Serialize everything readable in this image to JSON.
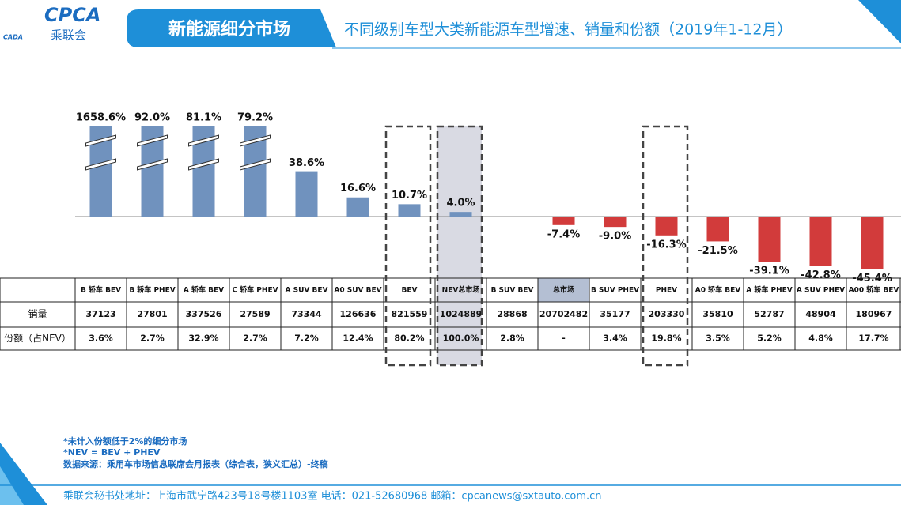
{
  "header": {
    "logo": "CPCA",
    "logo_sub": "乘联会",
    "logo_small": "CADA",
    "section": "新能源细分市场",
    "title": "不同级别车型大类新能源车型增速、销量和份额（2019年1-12月）"
  },
  "chart_data": {
    "type": "bar",
    "categories": [
      "B 轿车 BEV",
      "B 轿车 PHEV",
      "A 轿车 BEV",
      "C 轿车 PHEV",
      "A SUV BEV",
      "A0 SUV BEV",
      "BEV",
      "NEV总市场",
      "B SUV BEV",
      "总市场",
      "B SUV PHEV",
      "PHEV",
      "A0 轿车 BEV",
      "A 轿车 PHEV",
      "A SUV PHEV",
      "A00 轿车 BEV"
    ],
    "values": [
      1658.6,
      92.0,
      81.1,
      79.2,
      38.6,
      16.6,
      10.7,
      4.0,
      null,
      -7.4,
      -9.0,
      -16.3,
      -21.5,
      -39.1,
      -42.8,
      -45.4
    ],
    "value_labels": [
      "1658.6%",
      "92.0%",
      "81.1%",
      "79.2%",
      "38.6%",
      "16.6%",
      "10.7%",
      "4.0%",
      null,
      "-7.4%",
      "-9.0%",
      "-16.3%",
      "-21.5%",
      "-39.1%",
      "-42.8%",
      "-45.4%"
    ],
    "color": "#7092be",
    "negative_color": "#d23b3b",
    "ylim": [
      -55,
      78
    ]
  },
  "table": {
    "rows": [
      {
        "label": "销量",
        "cells": [
          "37123",
          "27801",
          "337526",
          "27589",
          "73344",
          "126636",
          "821559",
          "1024889",
          "28868",
          "20702482",
          "35177",
          "203330",
          "35810",
          "52787",
          "48904",
          "180967"
        ]
      },
      {
        "label": "份额（占NEV）",
        "cells": [
          "3.6%",
          "2.7%",
          "32.9%",
          "2.7%",
          "7.2%",
          "12.4%",
          "80.2%",
          "100.0%",
          "2.8%",
          "-",
          "3.4%",
          "19.8%",
          "3.5%",
          "5.2%",
          "4.8%",
          "17.7%"
        ]
      }
    ]
  },
  "notes": [
    "*未计入份额低于2%的细分市场",
    "*NEV = BEV + PHEV",
    "数据来源：乘用车市场信息联席会月报表（综合表，狭义汇总）-终稿"
  ],
  "footer": "乘联会秘书处地址：上海市武宁路423号18号楼1103室  电话：021-52680968   邮箱：cpcanews@sxtauto.com.cn"
}
